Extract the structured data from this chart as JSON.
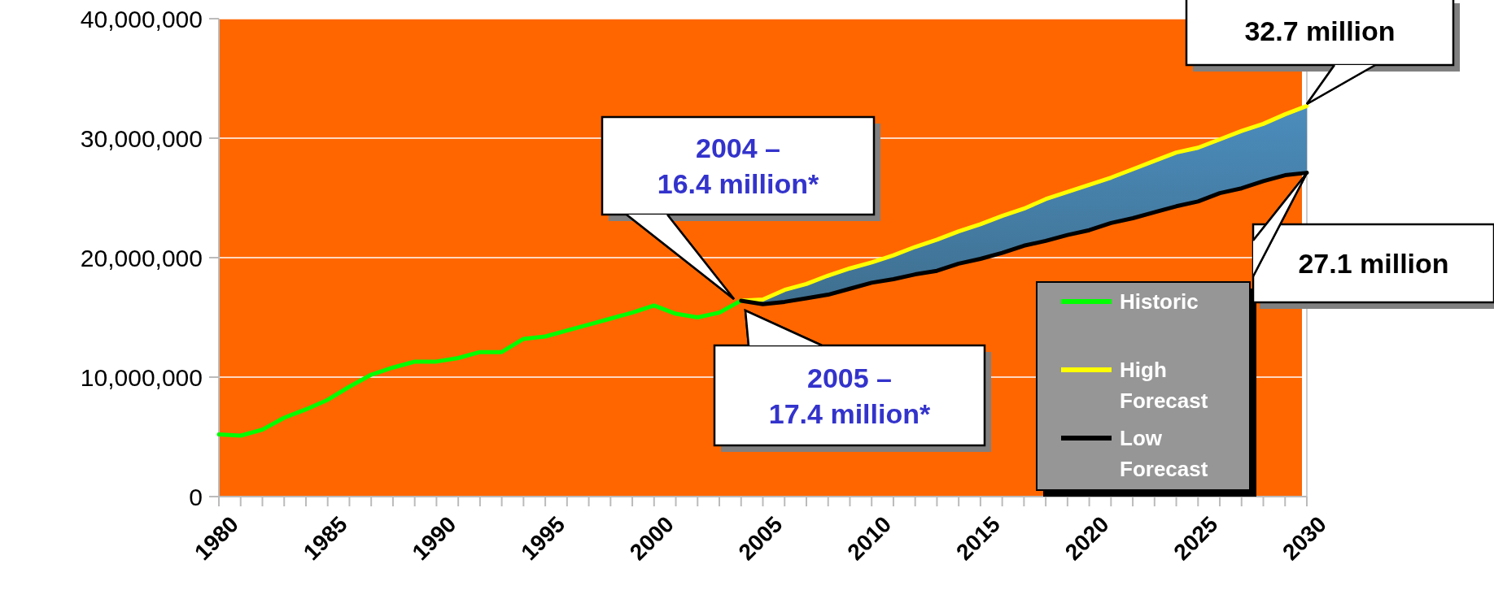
{
  "chart_data": {
    "type": "line",
    "xlim": [
      1980,
      2030
    ],
    "ylim": [
      0,
      40000000
    ],
    "xticks": [
      1980,
      {
        "value": 1981,
        "label": null
      },
      {
        "value": 1982,
        "label": null
      },
      {
        "value": 1983,
        "label": null
      },
      {
        "value": 1984,
        "label": null
      },
      1985,
      {
        "value": 1986,
        "label": null
      },
      {
        "value": 1987,
        "label": null
      },
      {
        "value": 1988,
        "label": null
      },
      {
        "value": 1989,
        "label": null
      },
      1990,
      {
        "value": 1991,
        "label": null
      },
      {
        "value": 1992,
        "label": null
      },
      {
        "value": 1993,
        "label": null
      },
      {
        "value": 1994,
        "label": null
      },
      1995,
      {
        "value": 1996,
        "label": null
      },
      {
        "value": 1997,
        "label": null
      },
      {
        "value": 1998,
        "label": null
      },
      {
        "value": 1999,
        "label": null
      },
      2000,
      {
        "value": 2001,
        "label": null
      },
      {
        "value": 2002,
        "label": null
      },
      {
        "value": 2003,
        "label": null
      },
      {
        "value": 2004,
        "label": null
      },
      2005,
      {
        "value": 2006,
        "label": null
      },
      {
        "value": 2007,
        "label": null
      },
      {
        "value": 2008,
        "label": null
      },
      {
        "value": 2009,
        "label": null
      },
      2010,
      {
        "value": 2011,
        "label": null
      },
      {
        "value": 2012,
        "label": null
      },
      {
        "value": 2013,
        "label": null
      },
      {
        "value": 2014,
        "label": null
      },
      2015,
      {
        "value": 2016,
        "label": null
      },
      {
        "value": 2017,
        "label": null
      },
      {
        "value": 2018,
        "label": null
      },
      {
        "value": 2019,
        "label": null
      },
      2020,
      {
        "value": 2021,
        "label": null
      },
      {
        "value": 2022,
        "label": null
      },
      {
        "value": 2023,
        "label": null
      },
      {
        "value": 2024,
        "label": null
      },
      2025,
      {
        "value": 2026,
        "label": null
      },
      {
        "value": 2027,
        "label": null
      },
      {
        "value": 2028,
        "label": null
      },
      {
        "value": 2029,
        "label": null
      },
      2030
    ],
    "yticks": [
      {
        "value": 0,
        "label": "0"
      },
      {
        "value": 10000000,
        "label": "10,000,000"
      },
      {
        "value": 20000000,
        "label": "20,000,000"
      },
      {
        "value": 30000000,
        "label": "30,000,000"
      },
      {
        "value": 40000000,
        "label": "40,000,000"
      }
    ],
    "grid": "y",
    "legend": "bottom right",
    "line_style": "solid",
    "series": [
      {
        "name": "Historic",
        "color": "#00ff00",
        "x": [
          1980,
          1981,
          1982,
          1983,
          1984,
          1985,
          1986,
          1987,
          1988,
          1989,
          1990,
          1991,
          1992,
          1993,
          1994,
          1995,
          1996,
          1997,
          1998,
          1999,
          2000,
          2001,
          2002,
          2003,
          2004
        ],
        "values": [
          5200000,
          5100000,
          5600000,
          6600000,
          7300000,
          8100000,
          9200000,
          10200000,
          10800000,
          11300000,
          11300000,
          11600000,
          12100000,
          12100000,
          13200000,
          13400000,
          13900000,
          14400000,
          14900000,
          15400000,
          16000000,
          15300000,
          15000000,
          15400000,
          16400000
        ]
      },
      {
        "name": "High Forecast",
        "color": "#ffff00",
        "x": [
          2004,
          2005,
          2006,
          2007,
          2008,
          2009,
          2010,
          2011,
          2012,
          2013,
          2014,
          2015,
          2016,
          2017,
          2018,
          2019,
          2020,
          2021,
          2022,
          2023,
          2024,
          2025,
          2026,
          2027,
          2028,
          2029,
          2030
        ],
        "values": [
          16400000,
          16500000,
          17300000,
          17800000,
          18500000,
          19100000,
          19600000,
          20200000,
          20900000,
          21500000,
          22200000,
          22800000,
          23500000,
          24100000,
          24900000,
          25500000,
          26100000,
          26700000,
          27400000,
          28100000,
          28800000,
          29200000,
          29900000,
          30600000,
          31200000,
          32000000,
          32700000
        ]
      },
      {
        "name": "Low Forecast",
        "color": "#000000",
        "x": [
          2004,
          2005,
          2006,
          2007,
          2008,
          2009,
          2010,
          2011,
          2012,
          2013,
          2014,
          2015,
          2016,
          2017,
          2018,
          2019,
          2020,
          2021,
          2022,
          2023,
          2024,
          2025,
          2026,
          2027,
          2028,
          2029,
          2030
        ],
        "values": [
          16400000,
          16100000,
          16300000,
          16600000,
          16900000,
          17400000,
          17900000,
          18200000,
          18600000,
          18900000,
          19500000,
          19900000,
          20400000,
          21000000,
          21400000,
          21900000,
          22300000,
          22900000,
          23300000,
          23800000,
          24300000,
          24700000,
          25400000,
          25800000,
          26400000,
          26900000,
          27100000
        ],
        "lower": [
          16400000,
          16100000,
          16300000,
          16600000,
          16900000,
          17400000,
          17900000,
          18200000,
          18600000,
          18900000,
          19500000,
          19900000,
          20400000,
          21000000,
          21400000,
          21900000,
          22300000,
          22900000,
          23300000,
          23800000,
          24300000,
          24700000,
          25400000,
          25800000,
          26400000,
          26900000,
          27100000
        ],
        "upper": [
          16400000,
          16500000,
          17300000,
          17800000,
          18500000,
          19100000,
          19600000,
          20200000,
          20900000,
          21500000,
          22200000,
          22800000,
          23500000,
          24100000,
          24900000,
          25500000,
          26100000,
          26700000,
          27400000,
          28100000,
          28800000,
          29200000,
          29900000,
          30600000,
          31200000,
          32000000,
          32700000
        ]
      }
    ],
    "annotations": [
      "2004 – 16.4 million*",
      "2005 – 17.4 million*",
      "32.7 million",
      "27.1 million"
    ]
  }
}
